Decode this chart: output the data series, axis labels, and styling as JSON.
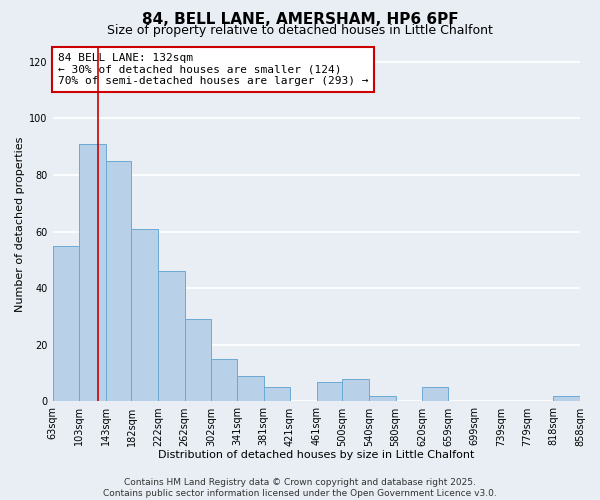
{
  "title": "84, BELL LANE, AMERSHAM, HP6 6PF",
  "subtitle": "Size of property relative to detached houses in Little Chalfont",
  "xlabel": "Distribution of detached houses by size in Little Chalfont",
  "ylabel": "Number of detached properties",
  "bins": [
    63,
    103,
    143,
    182,
    222,
    262,
    302,
    341,
    381,
    421,
    461,
    500,
    540,
    580,
    620,
    659,
    699,
    739,
    779,
    818,
    858
  ],
  "bin_labels": [
    "63sqm",
    "103sqm",
    "143sqm",
    "182sqm",
    "222sqm",
    "262sqm",
    "302sqm",
    "341sqm",
    "381sqm",
    "421sqm",
    "461sqm",
    "500sqm",
    "540sqm",
    "580sqm",
    "620sqm",
    "659sqm",
    "699sqm",
    "739sqm",
    "779sqm",
    "818sqm",
    "858sqm"
  ],
  "counts": [
    55,
    91,
    85,
    61,
    46,
    29,
    15,
    9,
    5,
    0,
    7,
    8,
    2,
    0,
    5,
    0,
    0,
    0,
    0,
    2
  ],
  "bar_color": "#b8d0e8",
  "bar_edge_color": "#6aaad4",
  "vline_x": 132,
  "vline_color": "#cc0000",
  "annotation_text": "84 BELL LANE: 132sqm\n← 30% of detached houses are smaller (124)\n70% of semi-detached houses are larger (293) →",
  "annotation_box_color": "#ffffff",
  "annotation_box_edge": "#cc0000",
  "ylim": [
    0,
    125
  ],
  "yticks": [
    0,
    20,
    40,
    60,
    80,
    100,
    120
  ],
  "background_color": "#e8eef4",
  "grid_color": "#ffffff",
  "footer": "Contains HM Land Registry data © Crown copyright and database right 2025.\nContains public sector information licensed under the Open Government Licence v3.0.",
  "title_fontsize": 11,
  "subtitle_fontsize": 9,
  "axis_label_fontsize": 8,
  "tick_fontsize": 7,
  "annotation_fontsize": 8,
  "footer_fontsize": 6.5
}
